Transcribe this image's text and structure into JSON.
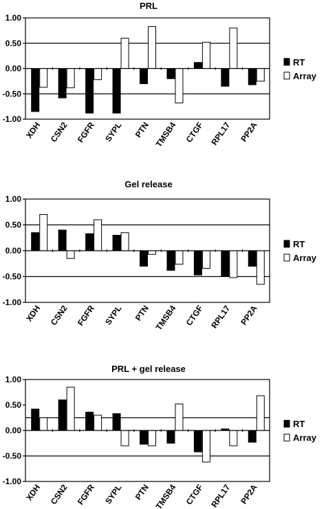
{
  "chart_data": [
    {
      "type": "bar",
      "title": "PRL",
      "categories": [
        "XDH",
        "CSN2",
        "FGFR",
        "SYPL",
        "PTN",
        "TMSB4",
        "CTGF",
        "RPL17",
        "PP2A"
      ],
      "series": [
        {
          "name": "RT",
          "color": "#000000",
          "values": [
            -0.85,
            -0.58,
            -0.88,
            -0.88,
            -0.3,
            -0.2,
            0.12,
            -0.35,
            -0.32
          ]
        },
        {
          "name": "Array",
          "color": "#ffffff",
          "values": [
            -0.37,
            -0.38,
            -0.22,
            0.6,
            0.83,
            -0.68,
            0.52,
            0.8,
            -0.25
          ]
        }
      ],
      "yticks": [
        "1.00",
        "0.50",
        "0.00",
        "-0.50",
        "-1.00"
      ],
      "ylim": [
        -1.0,
        1.0
      ],
      "gridlines": [
        0.5,
        -0.5
      ],
      "legend": "right"
    },
    {
      "type": "bar",
      "title": "Gel release",
      "categories": [
        "XDH",
        "CSN2",
        "FGFR",
        "SYPL",
        "PTN",
        "TMSB4",
        "CTGF",
        "RPL17",
        "PP2A"
      ],
      "series": [
        {
          "name": "RT",
          "color": "#000000",
          "values": [
            0.35,
            0.4,
            0.33,
            0.3,
            -0.3,
            -0.38,
            -0.47,
            -0.5,
            -0.3
          ]
        },
        {
          "name": "Array",
          "color": "#ffffff",
          "values": [
            0.7,
            -0.15,
            0.6,
            0.35,
            -0.07,
            -0.26,
            -0.34,
            -0.52,
            -0.65
          ]
        }
      ],
      "yticks": [
        "1.00",
        "0.50",
        "0.00",
        "-0.50",
        "-1.00"
      ],
      "ylim": [
        -1.0,
        1.0
      ],
      "gridlines": [
        0.5,
        -0.5
      ],
      "legend": "right"
    },
    {
      "type": "bar",
      "title": "PRL + gel release",
      "categories": [
        "XDH",
        "CSN2",
        "FGFR",
        "SYPL",
        "PTN",
        "TMSB4",
        "CTGF",
        "RPL17",
        "PP2A"
      ],
      "series": [
        {
          "name": "RT",
          "color": "#000000",
          "values": [
            0.42,
            0.6,
            0.36,
            0.33,
            -0.27,
            -0.25,
            -0.42,
            0.03,
            -0.23
          ]
        },
        {
          "name": "Array",
          "color": "#ffffff",
          "values": [
            0.25,
            0.85,
            0.3,
            -0.3,
            -0.3,
            0.52,
            -0.62,
            -0.3,
            0.68
          ]
        }
      ],
      "yticks": [
        "1.00",
        "0.50",
        "0.00",
        "-0.50",
        "-1.00"
      ],
      "ylim": [
        -1.0,
        1.0
      ],
      "gridlines": [
        0.25,
        -0.5
      ],
      "legend": "right"
    }
  ]
}
